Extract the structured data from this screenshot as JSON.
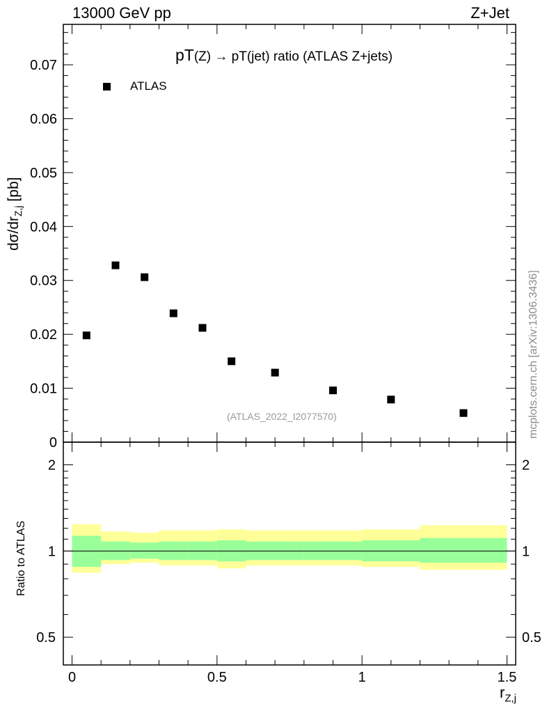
{
  "header": {
    "left": "13000 GeV pp",
    "right": "Z+Jet"
  },
  "title": {
    "part1": "pT",
    "part2": "(Z)",
    "arrow": "→",
    "part3": "pT(jet) ratio (ATLAS Z+jets)"
  },
  "legend": {
    "label": "ATLAS"
  },
  "watermark": "(ATLAS_2022_I2077570)",
  "side_credit": "mcplots.cern.ch [arXiv:1306.3436]",
  "ylabel_main": {
    "main": "dσ/dr",
    "sub": "Z,j",
    "unit": " [pb]"
  },
  "ylabel_ratio": "Ratio to ATLAS",
  "xlabel": {
    "main": "r",
    "sub": "Z,j"
  },
  "colors": {
    "band_inner": "#99ff99",
    "band_outer": "#ffff99",
    "marker": "#000000"
  },
  "chart_data": [
    {
      "type": "scatter",
      "panel": "main",
      "series": [
        {
          "name": "ATLAS",
          "x": [
            0.05,
            0.15,
            0.25,
            0.35,
            0.45,
            0.55,
            0.7,
            0.9,
            1.1,
            1.35
          ],
          "values": [
            0.0198,
            0.0328,
            0.0306,
            0.0239,
            0.0212,
            0.015,
            0.0129,
            0.0096,
            0.0079,
            0.0054
          ]
        }
      ],
      "xlim": [
        -0.03,
        1.53
      ],
      "ylim": [
        0,
        0.0775
      ],
      "yticks": [
        0,
        0.01,
        0.02,
        0.03,
        0.04,
        0.05,
        0.06,
        0.07
      ],
      "yticklabels": [
        "0",
        "0.01",
        "0.02",
        "0.03",
        "0.04",
        "0.05",
        "0.06",
        "0.07"
      ],
      "legend": "top-left"
    },
    {
      "type": "area",
      "panel": "ratio",
      "bins": [
        [
          0.0,
          0.1
        ],
        [
          0.1,
          0.2
        ],
        [
          0.2,
          0.3
        ],
        [
          0.3,
          0.4
        ],
        [
          0.4,
          0.5
        ],
        [
          0.5,
          0.6
        ],
        [
          0.6,
          0.8
        ],
        [
          0.8,
          1.0
        ],
        [
          1.0,
          1.2
        ],
        [
          1.2,
          1.5
        ]
      ],
      "inner_band": [
        [
          0.88,
          1.13
        ],
        [
          0.93,
          1.08
        ],
        [
          0.94,
          1.07
        ],
        [
          0.93,
          1.08
        ],
        [
          0.93,
          1.08
        ],
        [
          0.92,
          1.09
        ],
        [
          0.93,
          1.08
        ],
        [
          0.93,
          1.08
        ],
        [
          0.92,
          1.09
        ],
        [
          0.91,
          1.11
        ]
      ],
      "outer_band": [
        [
          0.84,
          1.24
        ],
        [
          0.9,
          1.17
        ],
        [
          0.91,
          1.16
        ],
        [
          0.89,
          1.18
        ],
        [
          0.89,
          1.18
        ],
        [
          0.87,
          1.19
        ],
        [
          0.89,
          1.18
        ],
        [
          0.89,
          1.18
        ],
        [
          0.88,
          1.19
        ],
        [
          0.86,
          1.23
        ]
      ],
      "reference_line": 1,
      "xlim": [
        -0.03,
        1.53
      ],
      "ylim": [
        0.4,
        2.4
      ],
      "ylog": true,
      "yticks": [
        0.5,
        1,
        2
      ],
      "yticklabels": [
        "0.5",
        "1",
        "2"
      ],
      "xticks": [
        0,
        0.5,
        1,
        1.5
      ],
      "xticklabels": [
        "0",
        "0.5",
        "1",
        "1.5"
      ]
    }
  ]
}
